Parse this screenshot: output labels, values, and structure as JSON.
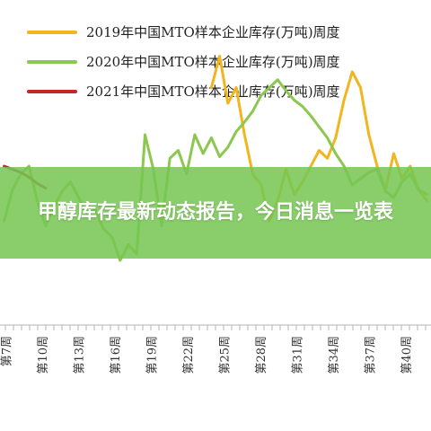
{
  "chart_data": {
    "type": "line",
    "title": "",
    "xlabel": "",
    "ylabel": "",
    "grid": false,
    "legend_position": "top-right",
    "x_tick_labels": [
      "第7周",
      "第10周",
      "第13周",
      "第16周",
      "第19周",
      "第22周",
      "第25周",
      "第28周",
      "第31周",
      "第34周",
      "第37周",
      "第40周"
    ],
    "x": [
      1,
      2,
      3,
      4,
      5,
      6,
      7,
      8,
      9,
      10,
      11,
      12,
      13,
      14,
      15,
      16,
      17,
      18,
      19,
      20,
      21,
      22,
      23,
      24,
      25,
      26,
      27,
      28,
      29,
      30,
      31,
      32,
      33,
      34,
      35,
      36,
      37,
      38,
      39,
      40,
      41,
      42,
      43,
      44,
      45,
      46,
      47,
      48,
      49,
      50,
      51,
      52
    ],
    "series": [
      {
        "name": "2019年中国MTO样本企业库存(万吨)周度",
        "color": "#f2b51e",
        "values": [
          null,
          null,
          null,
          null,
          null,
          null,
          null,
          null,
          null,
          null,
          null,
          null,
          null,
          null,
          null,
          null,
          null,
          null,
          null,
          null,
          null,
          null,
          null,
          null,
          null,
          150,
          170,
          140,
          150,
          120,
          95,
          88,
          65,
          78,
          98,
          82,
          90,
          100,
          110,
          105,
          118,
          142,
          160,
          150,
          120,
          100,
          85,
          108,
          92,
          100,
          85,
          78
        ]
      },
      {
        "name": "2020年中国MTO样本企业库存(万吨)周度",
        "color": "#8cc850",
        "values": [
          65,
          85,
          95,
          100,
          78,
          62,
          74,
          84,
          90,
          80,
          70,
          72,
          60,
          55,
          40,
          50,
          44,
          120,
          98,
          62,
          105,
          110,
          95,
          120,
          108,
          118,
          106,
          112,
          122,
          128,
          135,
          145,
          150,
          155,
          148,
          142,
          138,
          132,
          125,
          118,
          108,
          100,
          88,
          92,
          96,
          98,
          84,
          80,
          90,
          95,
          85,
          82
        ]
      },
      {
        "name": "2021年中国MTO样本企业库存(万吨)周度",
        "color": "#c0282c",
        "values": [
          100,
          98,
          96,
          93,
          89,
          86,
          null,
          null,
          null,
          null,
          null,
          null,
          null,
          null,
          null,
          null,
          null,
          null,
          null,
          null,
          null,
          null,
          null,
          null,
          null,
          null,
          null,
          null,
          null,
          null,
          null,
          null,
          null,
          null,
          null,
          null,
          40,
          null,
          null,
          null,
          null,
          null,
          null,
          null,
          null,
          null,
          null,
          null,
          null,
          null,
          null,
          null
        ]
      }
    ]
  },
  "banner": {
    "title": "甲醇库存最新动态报告，今日消息一览表"
  }
}
